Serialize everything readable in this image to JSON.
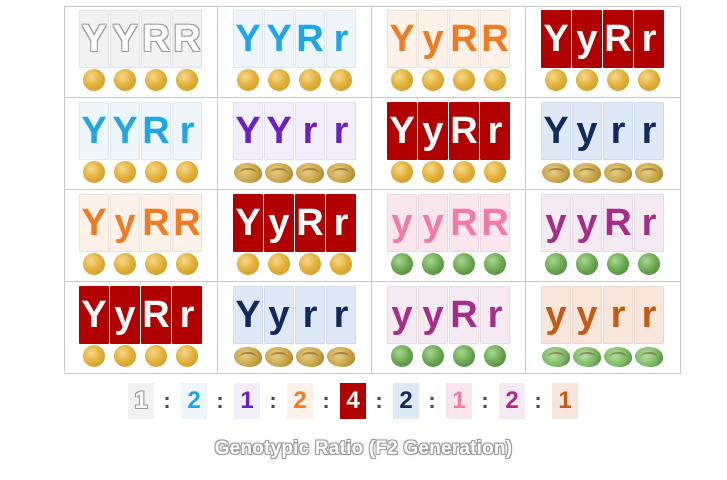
{
  "cells": [
    {
      "row": 1,
      "col": 1,
      "letters": [
        "Y",
        "Y",
        "R",
        "R"
      ],
      "seed": "yellow-round",
      "text_color": "#ffffff",
      "tile_bg": "#f2f2f2",
      "outlined": true
    },
    {
      "row": 1,
      "col": 2,
      "letters": [
        "Y",
        "Y",
        "R",
        "r"
      ],
      "seed": "yellow-round",
      "text_color": "#1ea7e8",
      "tile_bg": "#eef6fc"
    },
    {
      "row": 1,
      "col": 3,
      "letters": [
        "Y",
        "y",
        "R",
        "R"
      ],
      "seed": "yellow-round",
      "text_color": "#f07b22",
      "tile_bg": "#fdf1e8"
    },
    {
      "row": 1,
      "col": 4,
      "letters": [
        "Y",
        "y",
        "R",
        "r"
      ],
      "seed": "yellow-round",
      "text_color": "#ffffff",
      "tile_bg": "#b20000"
    },
    {
      "row": 2,
      "col": 1,
      "letters": [
        "Y",
        "Y",
        "R",
        "r"
      ],
      "seed": "yellow-round",
      "text_color": "#1ea7e8",
      "tile_bg": "#eef6fc"
    },
    {
      "row": 2,
      "col": 2,
      "letters": [
        "Y",
        "Y",
        "r",
        "r"
      ],
      "seed": "yellow-wrinkled",
      "text_color": "#6b1fc4",
      "tile_bg": "#f3eefb"
    },
    {
      "row": 2,
      "col": 3,
      "letters": [
        "Y",
        "y",
        "R",
        "r"
      ],
      "seed": "yellow-round",
      "text_color": "#ffffff",
      "tile_bg": "#b20000"
    },
    {
      "row": 2,
      "col": 4,
      "letters": [
        "Y",
        "y",
        "r",
        "r"
      ],
      "seed": "yellow-wrinkled",
      "text_color": "#102a5c",
      "tile_bg": "#dfe8f6"
    },
    {
      "row": 3,
      "col": 1,
      "letters": [
        "Y",
        "y",
        "R",
        "R"
      ],
      "seed": "yellow-round",
      "text_color": "#f07b22",
      "tile_bg": "#fdf1e8"
    },
    {
      "row": 3,
      "col": 2,
      "letters": [
        "Y",
        "y",
        "R",
        "r"
      ],
      "seed": "yellow-round",
      "text_color": "#ffffff",
      "tile_bg": "#b20000"
    },
    {
      "row": 3,
      "col": 3,
      "letters": [
        "y",
        "y",
        "R",
        "R"
      ],
      "seed": "green-round",
      "text_color": "#f27aa6",
      "tile_bg": "#fbe6ee"
    },
    {
      "row": 3,
      "col": 4,
      "letters": [
        "y",
        "y",
        "R",
        "r"
      ],
      "seed": "green-round",
      "text_color": "#a62d8a",
      "tile_bg": "#f5e9f2"
    },
    {
      "row": 4,
      "col": 1,
      "letters": [
        "Y",
        "y",
        "R",
        "r"
      ],
      "seed": "yellow-round",
      "text_color": "#ffffff",
      "tile_bg": "#b20000"
    },
    {
      "row": 4,
      "col": 2,
      "letters": [
        "Y",
        "y",
        "r",
        "r"
      ],
      "seed": "yellow-wrinkled",
      "text_color": "#102a5c",
      "tile_bg": "#dfe8f6"
    },
    {
      "row": 4,
      "col": 3,
      "letters": [
        "y",
        "y",
        "R",
        "r"
      ],
      "seed": "green-round",
      "text_color": "#a62d8a",
      "tile_bg": "#f5e9f2"
    },
    {
      "row": 4,
      "col": 4,
      "letters": [
        "y",
        "y",
        "r",
        "r"
      ],
      "seed": "green-wrinkled",
      "text_color": "#c35a16",
      "tile_bg": "#f8e6da"
    }
  ],
  "ratio": {
    "values": [
      "1",
      "2",
      "1",
      "2",
      "4",
      "2",
      "1",
      "2",
      "1"
    ],
    "separator": ":",
    "text_colors": [
      "#ffffff",
      "#1ea7e8",
      "#6b1fc4",
      "#f07b22",
      "#ffffff",
      "#102a5c",
      "#f27aa6",
      "#a62d8a",
      "#c35a16"
    ],
    "box_colors": [
      "#f2f2f2",
      "#eef6fc",
      "#f3eefb",
      "#fdf1e8",
      "#b20000",
      "#dfe8f6",
      "#fbe6ee",
      "#f5e9f2",
      "#f8e6da"
    ]
  },
  "caption": "Genotypic Ratio (F2 Generation)"
}
